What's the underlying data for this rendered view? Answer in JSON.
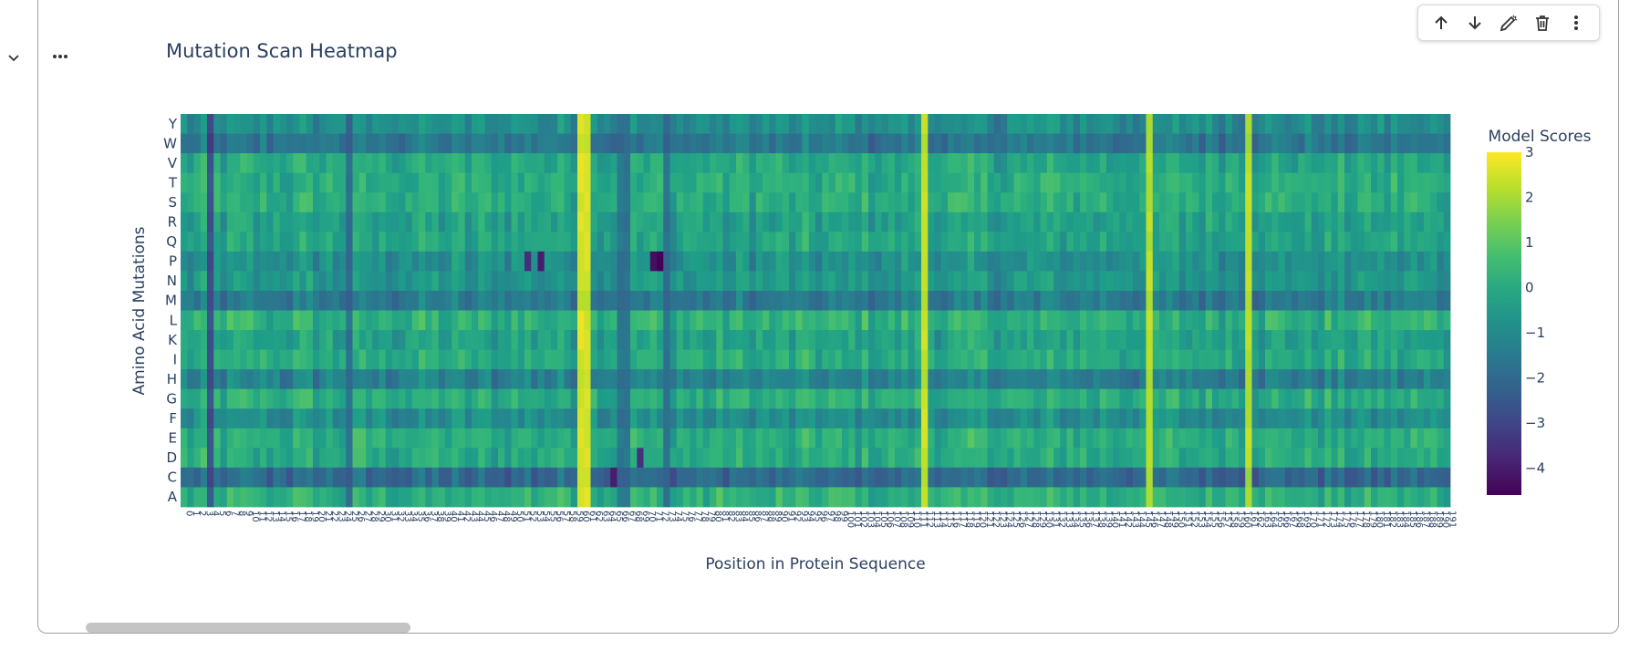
{
  "toolbar": {
    "icons": [
      "arrow-up-icon",
      "arrow-down-icon",
      "edit-icon",
      "trash-icon",
      "more-vertical-icon"
    ]
  },
  "chart_data": {
    "type": "heatmap",
    "title": "Mutation Scan Heatmap",
    "xlabel": "Position in Protein Sequence",
    "ylabel": "Amino Acid Mutations",
    "colorbar_title": "Model Scores",
    "colorscale": "Viridis",
    "zrange": [
      -4.6,
      3.0
    ],
    "colorbar_ticks": [
      "3",
      "2",
      "1",
      "0",
      "−1",
      "−2",
      "−3",
      "−4"
    ],
    "colorbar_tick_values": [
      3,
      2,
      1,
      0,
      -1,
      -2,
      -3,
      -4
    ],
    "y_categories": [
      "Y",
      "W",
      "V",
      "T",
      "S",
      "R",
      "Q",
      "P",
      "N",
      "M",
      "L",
      "K",
      "I",
      "H",
      "G",
      "F",
      "E",
      "D",
      "C",
      "A"
    ],
    "x_positions": [
      0,
      191
    ],
    "row_baseline": {
      "Y": -0.9,
      "W": -1.6,
      "V": -0.1,
      "T": 0.1,
      "S": 0.1,
      "R": -0.3,
      "Q": -0.2,
      "P": -0.8,
      "N": -0.6,
      "M": -1.5,
      "L": 0.2,
      "K": -0.3,
      "I": 0.0,
      "H": -1.3,
      "G": 0.1,
      "F": -0.9,
      "E": 0.1,
      "D": 0.0,
      "C": -2.0,
      "A": 0.2
    },
    "column_effects": [
      {
        "x": [
          60,
          61
        ],
        "value": 2.8
      },
      {
        "x": [
          112
        ],
        "value": 2.6
      },
      {
        "x": [
          146
        ],
        "value": 2.4
      },
      {
        "x": [
          161
        ],
        "value": 2.4
      },
      {
        "x": [
          4
        ],
        "value": -2.6
      },
      {
        "x": [
          25
        ],
        "value": -1.8
      },
      {
        "x": [
          66,
          67
        ],
        "value": -1.6
      },
      {
        "x": [
          73
        ],
        "value": -1.7
      }
    ],
    "local_minima": [
      {
        "x": 72,
        "y": "P",
        "value": -4.6
      },
      {
        "x": 71,
        "y": "P",
        "value": -4.3
      },
      {
        "x": 54,
        "y": "P",
        "value": -4.0
      },
      {
        "x": 52,
        "y": "P",
        "value": -3.6
      },
      {
        "x": 65,
        "y": "C",
        "value": -4.0
      },
      {
        "x": 69,
        "y": "D",
        "value": -3.5
      }
    ]
  }
}
